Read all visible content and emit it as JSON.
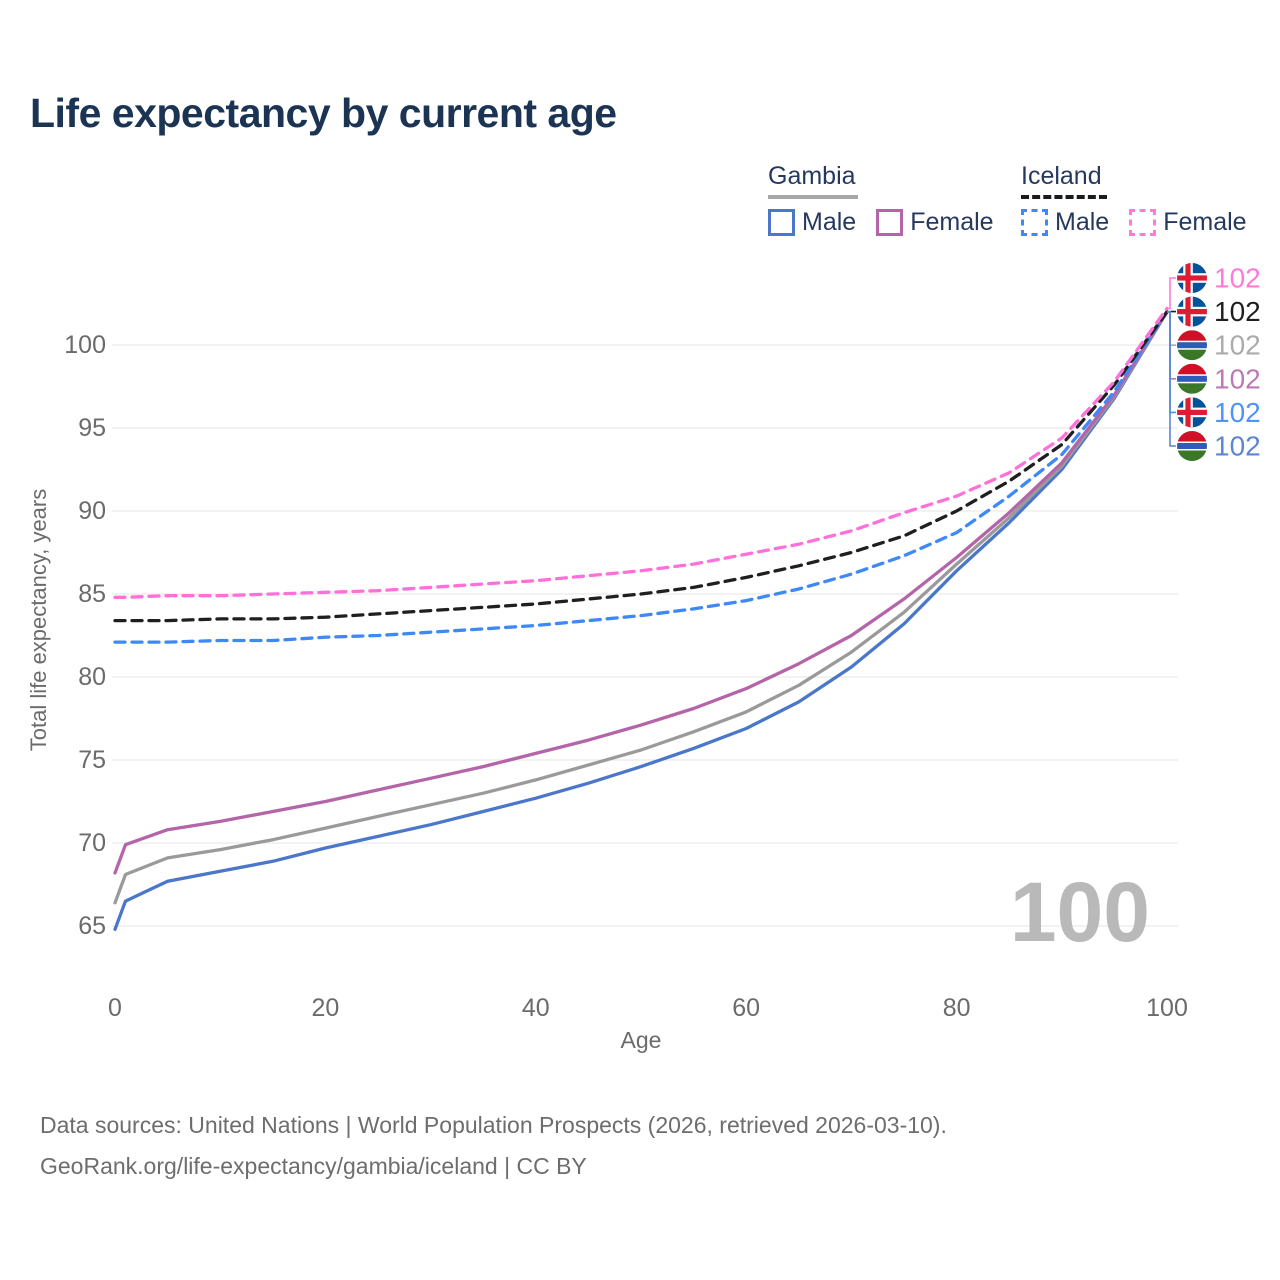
{
  "title": "Life expectancy by current age",
  "watermark": "100",
  "legend": {
    "gambia": {
      "title": "Gambia",
      "male": "Male",
      "female": "Female"
    },
    "iceland": {
      "title": "Iceland",
      "male": "Male",
      "female": "Female"
    }
  },
  "footer": {
    "line1": "Data sources: United Nations | World Population Prospects (2026, retrieved 2026-03-10).",
    "line2": "GeoRank.org/life-expectancy/gambia/iceland | CC BY"
  },
  "icons": {
    "iceland_flag": {
      "blue": "#02529C",
      "white": "#ffffff",
      "red": "#DC1E35"
    },
    "gambia_flag": {
      "red": "#CE1126",
      "white": "#ffffff",
      "blue": "#2E5CB8",
      "green": "#3A7728"
    }
  },
  "chart_data": {
    "type": "line",
    "title": "Life expectancy by current age",
    "xlabel": "Age",
    "ylabel": "Total life expectancy, years",
    "xlim": [
      0,
      100
    ],
    "ylim": [
      65,
      100
    ],
    "x_ticks": [
      0,
      20,
      40,
      60,
      80,
      100
    ],
    "y_ticks": [
      65,
      70,
      75,
      80,
      85,
      90,
      95,
      100
    ],
    "grid": "horizontal",
    "legend_position": "top-right",
    "ages": [
      0,
      1,
      5,
      10,
      15,
      20,
      25,
      30,
      35,
      40,
      45,
      50,
      55,
      60,
      65,
      70,
      75,
      80,
      85,
      90,
      95,
      100
    ],
    "series": [
      {
        "name": "Gambia Male",
        "country": "Gambia",
        "sex": "Male",
        "color": "#4a77c9",
        "dashed": false,
        "flag": "gambia",
        "end_label": "102",
        "end_label_color": "#5b86d3",
        "label_row": 5,
        "values": [
          64.8,
          66.5,
          67.7,
          68.3,
          68.9,
          69.7,
          70.4,
          71.1,
          71.9,
          72.7,
          73.6,
          74.6,
          75.7,
          76.9,
          78.5,
          80.6,
          83.2,
          86.4,
          89.3,
          92.5,
          96.8,
          102
        ]
      },
      {
        "name": "Gambia",
        "country": "Gambia",
        "sex": "Both",
        "color": "#9a9a9a",
        "dashed": false,
        "flag": "gambia",
        "end_label": "102",
        "end_label_color": "#ababab",
        "label_row": 2,
        "values": [
          66.4,
          68.1,
          69.1,
          69.6,
          70.2,
          70.9,
          71.6,
          72.3,
          73.0,
          73.8,
          74.7,
          75.6,
          76.7,
          77.9,
          79.5,
          81.5,
          83.9,
          86.8,
          89.6,
          92.7,
          96.9,
          102
        ]
      },
      {
        "name": "Gambia Female",
        "country": "Gambia",
        "sex": "Female",
        "color": "#b465a8",
        "dashed": false,
        "flag": "gambia",
        "end_label": "102",
        "end_label_color": "#bd79b4",
        "label_row": 3,
        "values": [
          68.2,
          69.9,
          70.8,
          71.3,
          71.9,
          72.5,
          73.2,
          73.9,
          74.6,
          75.4,
          76.2,
          77.1,
          78.1,
          79.3,
          80.8,
          82.5,
          84.7,
          87.2,
          89.9,
          92.9,
          97.0,
          102
        ]
      },
      {
        "name": "Iceland Male",
        "country": "Iceland",
        "sex": "Male",
        "color": "#3f88f8",
        "dashed": true,
        "flag": "iceland",
        "end_label": "102",
        "end_label_color": "#4e94f8",
        "label_row": 4,
        "values": [
          82.1,
          82.1,
          82.1,
          82.2,
          82.2,
          82.4,
          82.5,
          82.7,
          82.9,
          83.1,
          83.4,
          83.7,
          84.1,
          84.6,
          85.3,
          86.2,
          87.3,
          88.7,
          90.9,
          93.4,
          97.2,
          102
        ]
      },
      {
        "name": "Iceland",
        "country": "Iceland",
        "sex": "Both",
        "color": "#1f1f1f",
        "dashed": true,
        "flag": "iceland",
        "end_label": "102",
        "end_label_color": "#1f1f1f",
        "label_row": 1,
        "values": [
          83.4,
          83.4,
          83.4,
          83.5,
          83.5,
          83.6,
          83.8,
          84.0,
          84.2,
          84.4,
          84.7,
          85.0,
          85.4,
          86.0,
          86.7,
          87.5,
          88.5,
          90.0,
          91.8,
          94.0,
          97.6,
          102
        ]
      },
      {
        "name": "Iceland Female",
        "country": "Iceland",
        "sex": "Female",
        "color": "#ff70d9",
        "dashed": true,
        "flag": "iceland",
        "end_label": "102",
        "end_label_color": "#ff79da",
        "label_row": 0,
        "values": [
          84.8,
          84.8,
          84.9,
          84.9,
          85.0,
          85.1,
          85.2,
          85.4,
          85.6,
          85.8,
          86.1,
          86.4,
          86.8,
          87.4,
          88.0,
          88.8,
          89.9,
          90.9,
          92.3,
          94.4,
          97.8,
          102.2
        ]
      }
    ]
  }
}
